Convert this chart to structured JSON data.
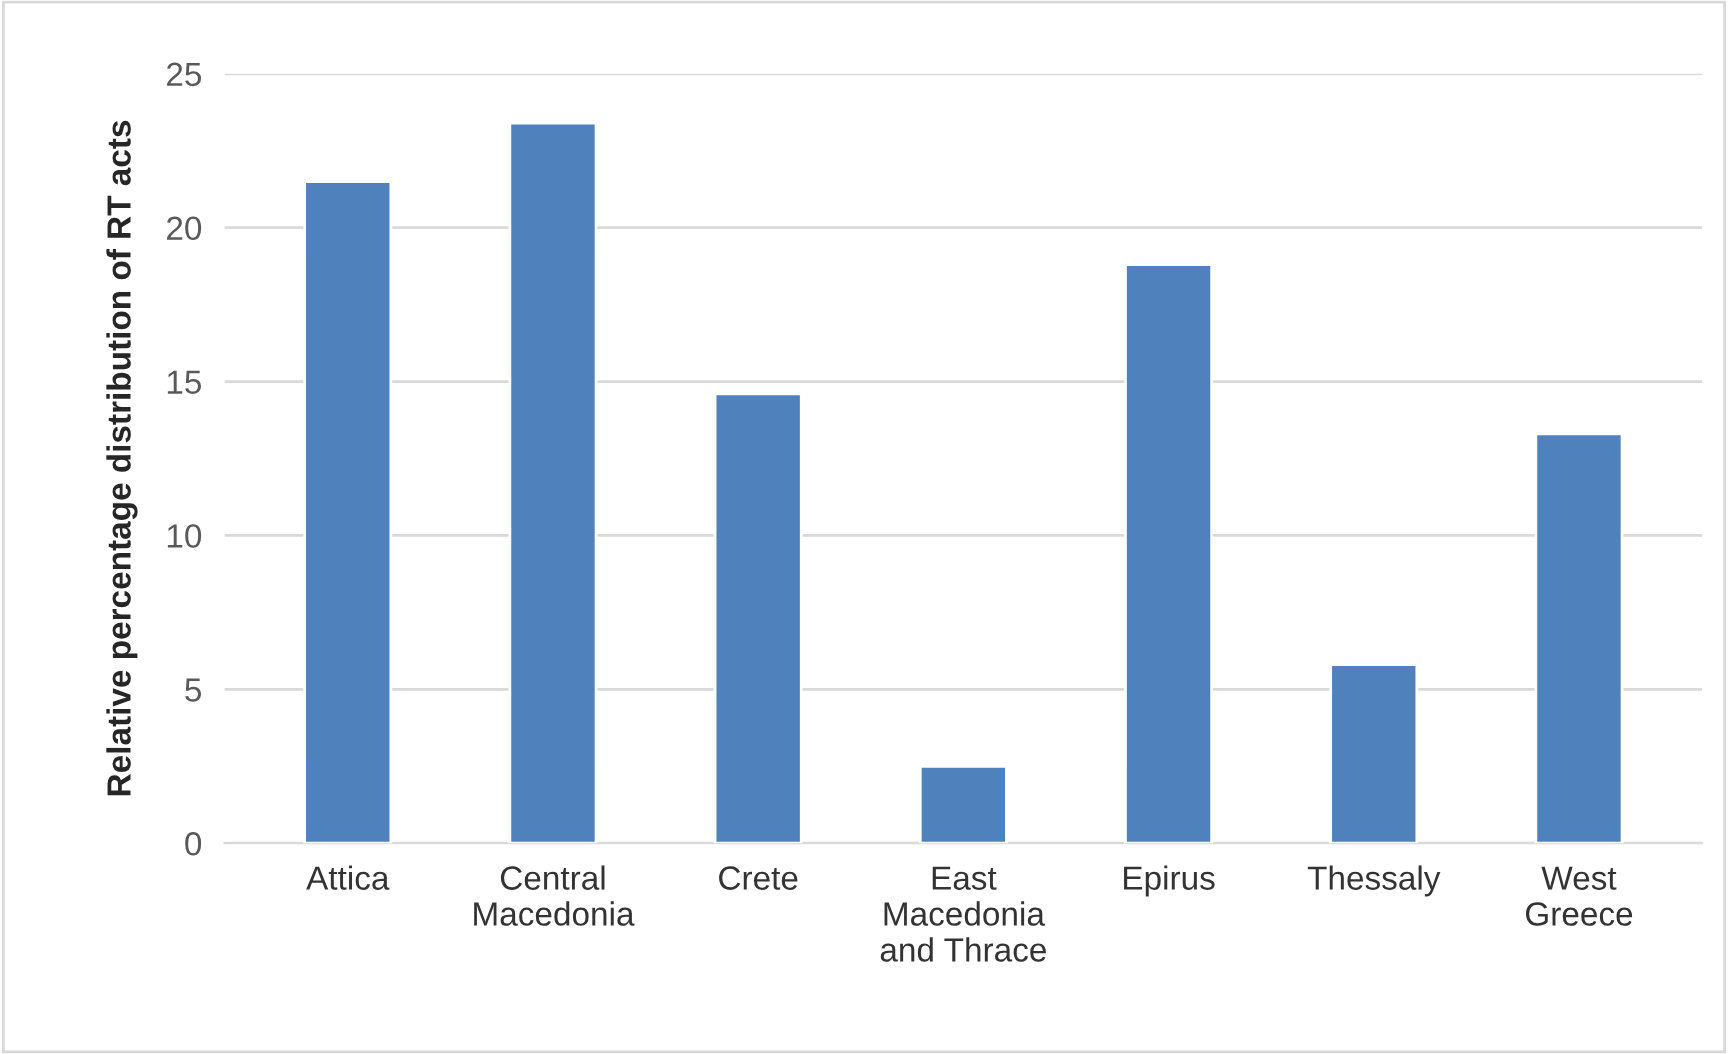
{
  "chart_data": {
    "type": "bar",
    "ylabel": "Relative percentage distribution of RT acts",
    "categories": [
      "Attica",
      "Central\nMacedonia",
      "Crete",
      "East\nMacedonia\nand Thrace",
      "Epirus",
      "Thessaly",
      "West\nGreece"
    ],
    "values": [
      21.5,
      23.4,
      14.6,
      2.5,
      18.8,
      5.8,
      13.3
    ],
    "color": "#4f81bd",
    "ylim": [
      0,
      25
    ],
    "yticks": [
      0,
      5,
      10,
      15,
      20,
      25
    ],
    "grid": "y"
  }
}
